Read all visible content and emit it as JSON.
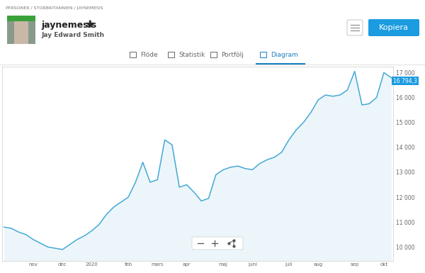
{
  "page": {
    "breadcrumb": "PERSONER / STORBRITANNIEN / JAYNEMESIS",
    "username": "jaynemesis",
    "full_name": "Jay Edward Smith",
    "button": "Kopiera",
    "tabs": [
      {
        "label": "Flöde",
        "active": false
      },
      {
        "label": "Statistik",
        "active": false
      },
      {
        "label": "Portfölj",
        "active": false
      },
      {
        "label": "Diagram",
        "active": true
      }
    ]
  },
  "chart_data": {
    "type": "line",
    "color": "#45a8d6",
    "grid": false,
    "categories": [
      null,
      null,
      null,
      null,
      "nov",
      null,
      null,
      null,
      "dec",
      null,
      null,
      null,
      "2020",
      null,
      null,
      null,
      null,
      "feb",
      null,
      null,
      null,
      "mars",
      null,
      null,
      null,
      "apr",
      null,
      null,
      null,
      null,
      "maj",
      null,
      null,
      null,
      "juni",
      null,
      null,
      null,
      null,
      "juli",
      null,
      null,
      null,
      "aug",
      null,
      null,
      null,
      null,
      "sep",
      null,
      null,
      null,
      "okt",
      null
    ],
    "values": [
      10800,
      10750,
      10600,
      10500,
      10300,
      10150,
      10000,
      9950,
      9900,
      10100,
      10300,
      10450,
      10650,
      10900,
      11300,
      11600,
      11800,
      12000,
      12600,
      13400,
      12600,
      12700,
      14300,
      14100,
      12400,
      12500,
      12200,
      11850,
      11950,
      12900,
      13100,
      13200,
      13250,
      13150,
      13100,
      13350,
      13500,
      13600,
      13800,
      14300,
      14700,
      15000,
      15400,
      15900,
      16100,
      16050,
      16100,
      16300,
      17050,
      15700,
      15750,
      16000,
      17000,
      16794.3
    ],
    "value_labels": [
      null,
      null,
      null,
      null,
      null,
      null,
      null,
      null,
      null,
      null,
      null,
      null,
      null,
      null,
      null,
      null,
      null,
      null,
      null,
      null,
      null,
      null,
      null,
      null,
      null,
      null,
      null,
      null,
      null,
      null,
      null,
      null,
      null,
      null,
      null,
      null,
      null,
      null,
      null,
      null,
      null,
      null,
      null,
      null,
      null,
      null,
      null,
      null,
      null,
      null,
      null,
      null,
      null,
      "16 794,3"
    ],
    "ylim": [
      9450,
      17250
    ],
    "yticks": [
      {
        "value": 10000,
        "label": "10 000"
      },
      {
        "value": 11000,
        "label": "11 000"
      },
      {
        "value": 12000,
        "label": "12 000"
      },
      {
        "value": 13000,
        "label": "13 000"
      },
      {
        "value": 14000,
        "label": "14 000"
      },
      {
        "value": 15000,
        "label": "15 000"
      },
      {
        "value": 16000,
        "label": "16 000"
      },
      {
        "value": 17000,
        "label": "17 000"
      }
    ]
  }
}
